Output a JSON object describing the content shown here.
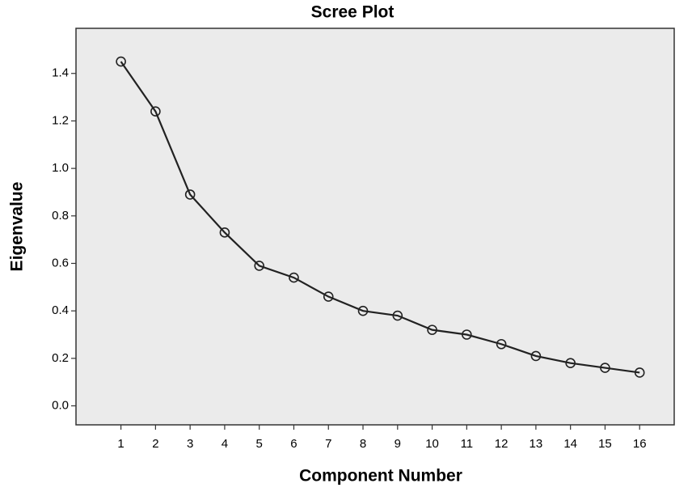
{
  "chart_data": {
    "type": "line",
    "title": "Scree Plot",
    "x_label": "Component Number",
    "y_label": "Eigenvalue",
    "x": [
      1,
      2,
      3,
      4,
      5,
      6,
      7,
      8,
      9,
      10,
      11,
      12,
      13,
      14,
      15,
      16
    ],
    "series": [
      {
        "name": "Eigenvalue",
        "color": "#222222",
        "values": [
          1.45,
          1.24,
          0.89,
          0.73,
          0.59,
          0.54,
          0.46,
          0.4,
          0.38,
          0.32,
          0.3,
          0.26,
          0.21,
          0.18,
          0.16,
          0.14
        ]
      }
    ],
    "xlim": [
      -0.3,
      17
    ],
    "xticks": [
      1,
      2,
      3,
      4,
      5,
      6,
      7,
      8,
      9,
      10,
      11,
      12,
      13,
      14,
      15,
      16
    ],
    "ylim": [
      -0.08,
      1.59
    ],
    "yticks": [
      {
        "value": 0,
        "label": "0.0"
      },
      0.2,
      0.4,
      0.6,
      0.8,
      {
        "value": 1,
        "label": "1.0"
      },
      1.2,
      1.4
    ],
    "background": "#ebebeb"
  }
}
